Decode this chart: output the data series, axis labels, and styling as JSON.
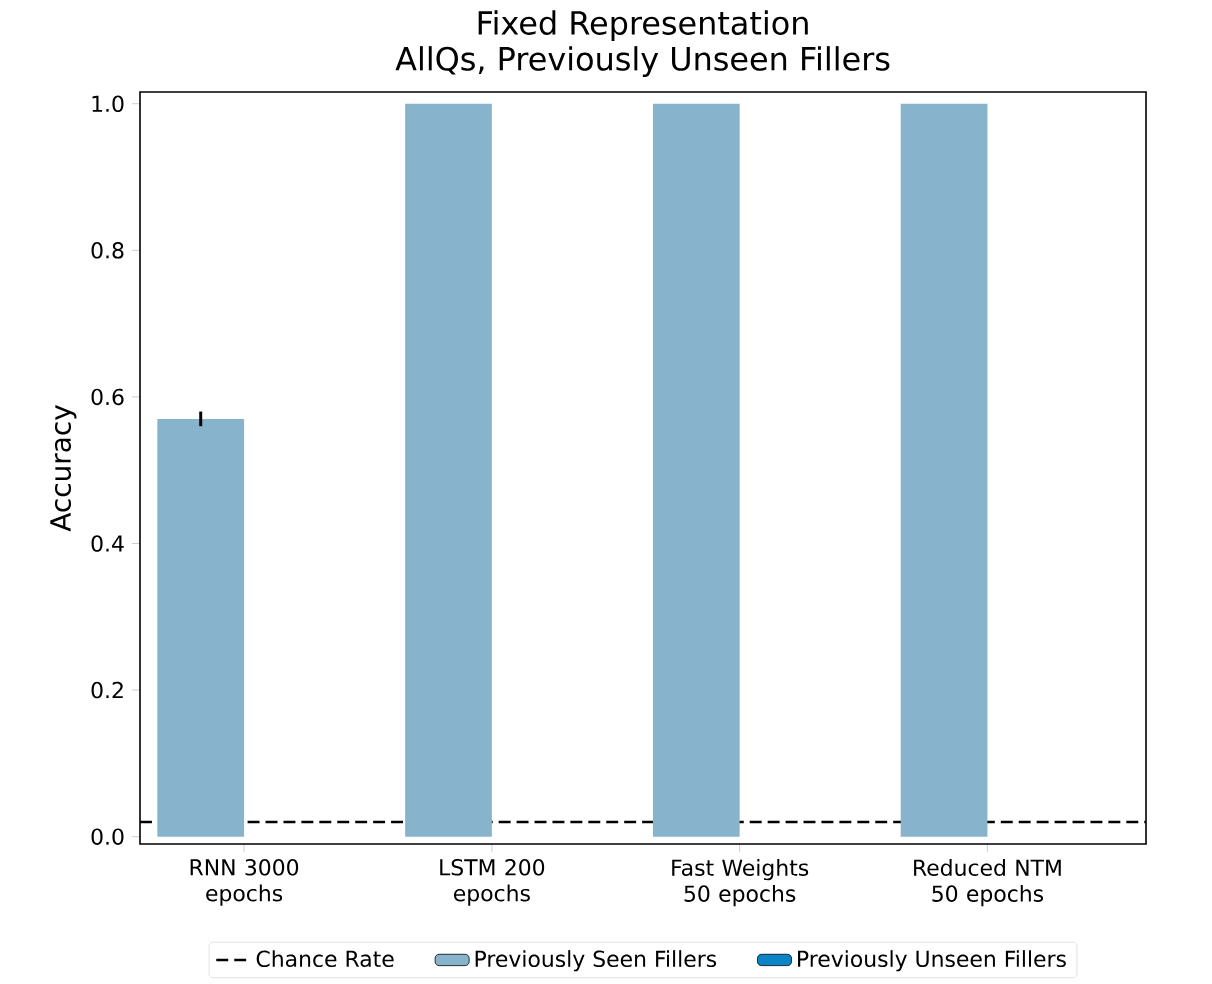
{
  "chart_data": {
    "type": "bar",
    "title": "Fixed Representation\nAllQs, Previously Unseen Fillers",
    "ylabel": "Accuracy",
    "categories": [
      "RNN 3000 epochs",
      "LSTM 200 epochs",
      "Fast Weights 50 epochs",
      "Reduced NTM 50 epochs"
    ],
    "series": [
      {
        "name": "Previously Seen Fillers",
        "color": "#87b3cd",
        "values": [
          0.57,
          1.0,
          1.0,
          1.0
        ],
        "errors": [
          0.01,
          null,
          null,
          null
        ]
      },
      {
        "name": "Previously Unseen Fillers",
        "color": "#0a84c6",
        "values": [
          null,
          null,
          null,
          null
        ]
      }
    ],
    "ref_lines": [
      {
        "axis": "y",
        "value": 0.02,
        "label": "Chance Rate",
        "color": "#000000",
        "line_style": "dashed"
      }
    ],
    "ylim": [
      -0.01,
      1.016
    ],
    "yticks": [
      {
        "value": 0,
        "label": "0.0"
      },
      {
        "value": 0.2,
        "label": "0.2"
      },
      {
        "value": 0.4,
        "label": "0.4"
      },
      {
        "value": 0.6,
        "label": "0.6"
      },
      {
        "value": 0.8,
        "label": "0.8"
      },
      {
        "value": 1.0,
        "label": "1.0"
      }
    ],
    "grid": false,
    "legend": "bottom"
  }
}
